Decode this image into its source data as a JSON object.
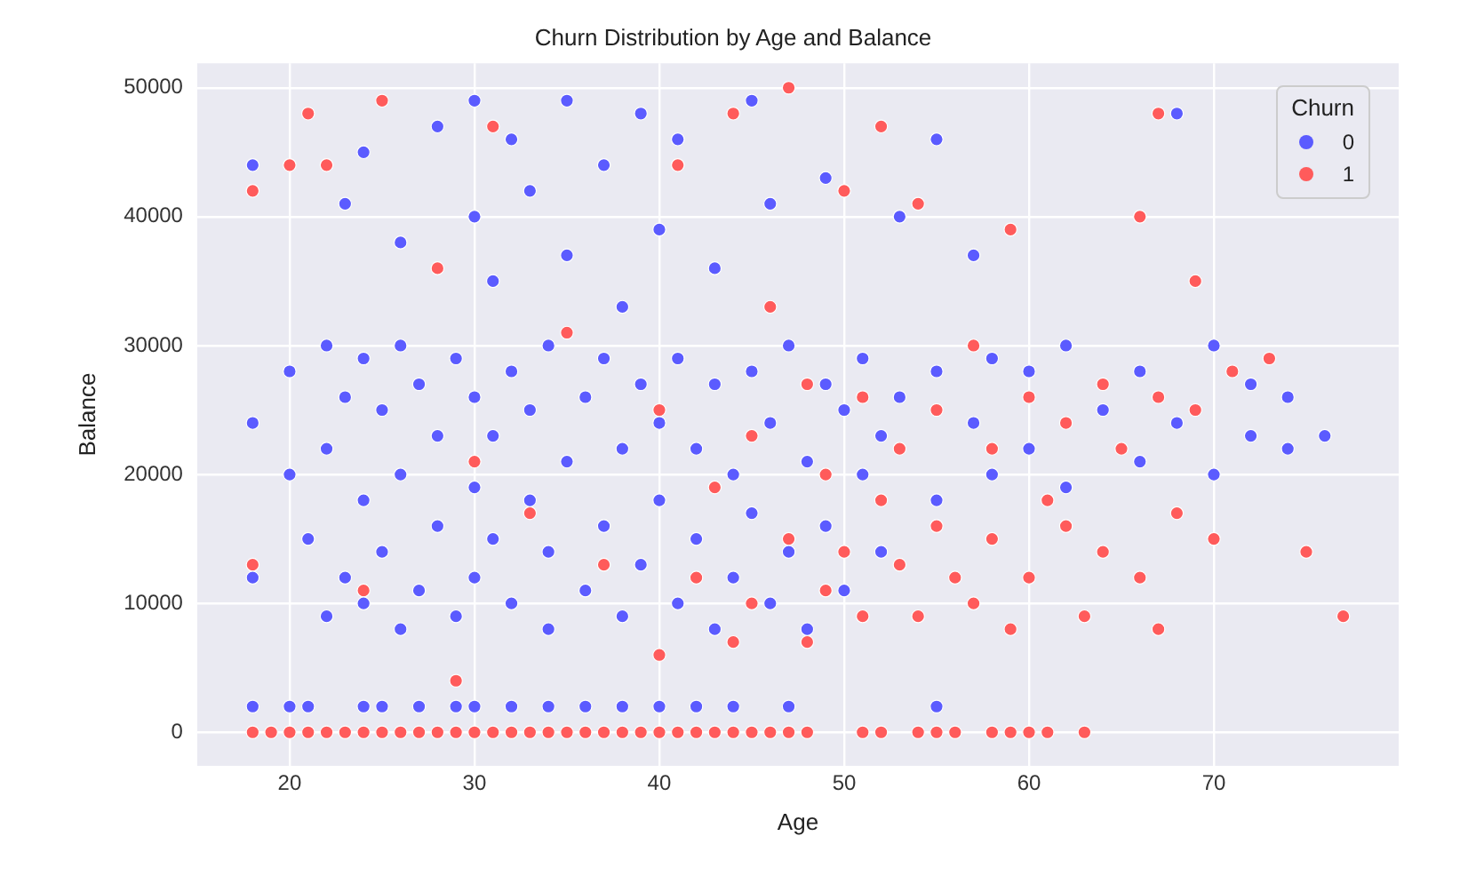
{
  "chart_data": {
    "type": "scatter",
    "title": "Churn Distribution by Age and Balance",
    "xlabel": "Age",
    "ylabel": "Balance",
    "legend_title": "Churn",
    "xlim": [
      15,
      80
    ],
    "ylim": [
      -2600,
      51900
    ],
    "xticks": [
      20,
      30,
      40,
      50,
      60,
      70
    ],
    "yticks": [
      0,
      10000,
      20000,
      30000,
      40000,
      50000
    ],
    "grid": true,
    "legend": "top right",
    "marker": "circle",
    "series": [
      {
        "name": "0",
        "color": "#5b5bff",
        "x": [
          18,
          18,
          18,
          18,
          20,
          20,
          20,
          21,
          21,
          22,
          22,
          22,
          23,
          23,
          23,
          24,
          24,
          24,
          24,
          24,
          25,
          25,
          25,
          26,
          26,
          26,
          26,
          27,
          27,
          27,
          28,
          28,
          28,
          29,
          29,
          29,
          30,
          30,
          30,
          30,
          30,
          30,
          31,
          31,
          31,
          32,
          32,
          32,
          32,
          33,
          33,
          33,
          34,
          34,
          34,
          34,
          35,
          35,
          35,
          36,
          36,
          36,
          37,
          37,
          37,
          38,
          38,
          38,
          38,
          39,
          39,
          39,
          40,
          40,
          40,
          40,
          41,
          41,
          41,
          42,
          42,
          42,
          43,
          43,
          43,
          44,
          44,
          44,
          45,
          45,
          45,
          46,
          46,
          46,
          47,
          47,
          47,
          48,
          48,
          49,
          49,
          49,
          50,
          50,
          51,
          51,
          52,
          52,
          53,
          53,
          55,
          55,
          55,
          55,
          57,
          57,
          58,
          58,
          60,
          60,
          62,
          62,
          64,
          66,
          66,
          68,
          68,
          70,
          70,
          72,
          72,
          74,
          74,
          76
        ],
        "values": [
          2000,
          12000,
          24000,
          44000,
          2000,
          20000,
          28000,
          2000,
          15000,
          9000,
          22000,
          30000,
          12000,
          26000,
          41000,
          2000,
          10000,
          18000,
          29000,
          45000,
          2000,
          14000,
          25000,
          8000,
          20000,
          30000,
          38000,
          2000,
          11000,
          27000,
          16000,
          23000,
          47000,
          2000,
          9000,
          29000,
          2000,
          12000,
          19000,
          26000,
          40000,
          49000,
          15000,
          23000,
          35000,
          2000,
          10000,
          28000,
          46000,
          18000,
          25000,
          42000,
          2000,
          8000,
          14000,
          30000,
          21000,
          37000,
          49000,
          2000,
          11000,
          26000,
          16000,
          29000,
          44000,
          2000,
          9000,
          22000,
          33000,
          13000,
          27000,
          48000,
          2000,
          18000,
          24000,
          39000,
          10000,
          29000,
          46000,
          2000,
          15000,
          22000,
          8000,
          27000,
          36000,
          2000,
          12000,
          20000,
          17000,
          28000,
          49000,
          10000,
          24000,
          41000,
          2000,
          14000,
          30000,
          8000,
          21000,
          16000,
          27000,
          43000,
          11000,
          25000,
          20000,
          29000,
          14000,
          23000,
          26000,
          40000,
          2000,
          18000,
          28000,
          46000,
          24000,
          37000,
          20000,
          29000,
          22000,
          28000,
          19000,
          30000,
          25000,
          21000,
          28000,
          24000,
          48000,
          20000,
          30000,
          23000,
          27000,
          22000,
          26000,
          23000
        ]
      },
      {
        "name": "1",
        "color": "#ff5b5b",
        "x": [
          18,
          18,
          18,
          19,
          20,
          20,
          21,
          21,
          22,
          22,
          23,
          24,
          24,
          25,
          25,
          26,
          27,
          28,
          28,
          29,
          29,
          30,
          30,
          31,
          31,
          32,
          33,
          33,
          34,
          35,
          35,
          36,
          37,
          37,
          38,
          39,
          40,
          40,
          40,
          41,
          41,
          42,
          42,
          43,
          43,
          44,
          44,
          44,
          45,
          45,
          45,
          46,
          46,
          47,
          47,
          47,
          48,
          48,
          48,
          49,
          49,
          50,
          50,
          51,
          51,
          51,
          52,
          52,
          52,
          53,
          53,
          54,
          54,
          54,
          55,
          55,
          55,
          56,
          56,
          57,
          57,
          58,
          58,
          58,
          59,
          59,
          59,
          60,
          60,
          60,
          61,
          61,
          62,
          62,
          63,
          63,
          64,
          64,
          65,
          66,
          66,
          67,
          67,
          67,
          68,
          69,
          69,
          70,
          71,
          73,
          75,
          77
        ],
        "values": [
          0,
          42000,
          13000,
          0,
          0,
          44000,
          0,
          48000,
          0,
          44000,
          0,
          0,
          11000,
          0,
          49000,
          0,
          0,
          0,
          36000,
          0,
          4000,
          0,
          21000,
          0,
          47000,
          0,
          0,
          17000,
          0,
          0,
          31000,
          0,
          0,
          13000,
          0,
          0,
          0,
          6000,
          25000,
          0,
          44000,
          0,
          12000,
          0,
          19000,
          0,
          7000,
          48000,
          0,
          10000,
          23000,
          0,
          33000,
          0,
          15000,
          50000,
          0,
          7000,
          27000,
          11000,
          20000,
          14000,
          42000,
          0,
          9000,
          26000,
          0,
          47000,
          18000,
          13000,
          22000,
          0,
          9000,
          41000,
          0,
          16000,
          25000,
          0,
          12000,
          10000,
          30000,
          0,
          15000,
          22000,
          0,
          8000,
          39000,
          0,
          12000,
          26000,
          0,
          18000,
          16000,
          24000,
          0,
          9000,
          14000,
          27000,
          22000,
          12000,
          40000,
          8000,
          26000,
          48000,
          17000,
          35000,
          25000,
          15000,
          28000,
          29000,
          14000,
          9000
        ]
      }
    ]
  }
}
